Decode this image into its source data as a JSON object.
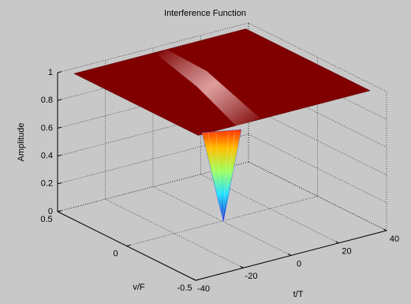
{
  "chart_data": {
    "type": "surface",
    "title": "Interference Function",
    "xlabel": "t/T",
    "ylabel": "v/F",
    "zlabel": "Amplitude",
    "xlim": [
      -40,
      40
    ],
    "xticks": [
      -40,
      -20,
      0,
      20,
      40
    ],
    "ylim": [
      -0.5,
      0.5
    ],
    "yticks": [
      -0.5,
      0,
      0.5
    ],
    "zlim": [
      0,
      1
    ],
    "zticks": [
      0,
      0.2,
      0.4,
      0.6,
      0.8,
      1
    ],
    "grid": true,
    "color": "#800000"
  }
}
